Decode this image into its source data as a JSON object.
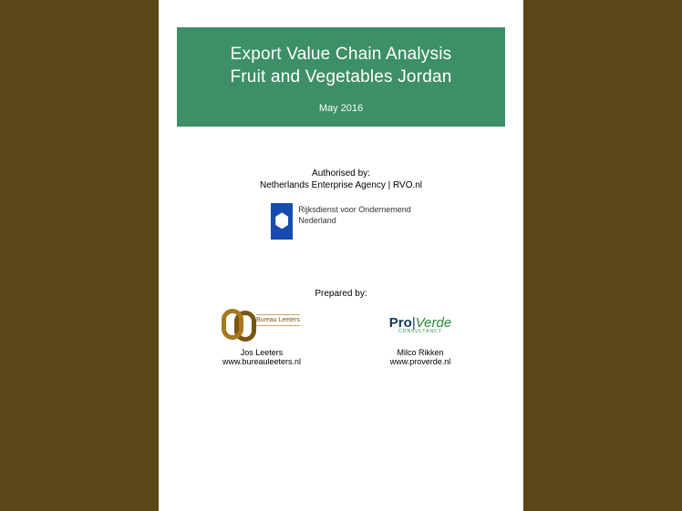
{
  "colors": {
    "page_bg": "#5c4517",
    "doc_bg": "#ffffff",
    "header_bg": "#3d8f67",
    "header_text": "#ffffff",
    "rvo_blue": "#164baf",
    "bureau_brown": "#a9781f",
    "proverde_blue": "#0a3a5e",
    "proverde_green": "#2a8a3a"
  },
  "header": {
    "title_line1": "Export Value Chain Analysis",
    "title_line2": "Fruit and Vegetables Jordan",
    "date": "May 2016",
    "title_fontsize": 19,
    "date_fontsize": 11
  },
  "authorised": {
    "label": "Authorised by:",
    "agency": "Netherlands Enterprise Agency | RVO.nl",
    "logo_text_line1": "Rijksdienst voor Ondernemend",
    "logo_text_line2": "Nederland"
  },
  "prepared": {
    "label": "Prepared by:",
    "left": {
      "logo_text": "Bureau Leeters",
      "name": "Jos Leeters",
      "url": "www.bureauleeters.nl"
    },
    "right": {
      "logo_pro": "Pro",
      "logo_verde": "Verde",
      "logo_sub": "CONSULTANCY",
      "name": "Milco Rikken",
      "url": "www.proverde.nl"
    }
  }
}
